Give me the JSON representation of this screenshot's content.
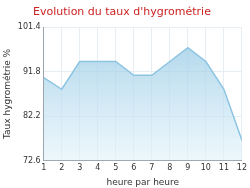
{
  "chart_data": {
    "type": "area",
    "title": "Evolution du taux d'hygrométrie",
    "x_label": "heure par heure",
    "y_label": "Taux hygrométrie %",
    "categories": [
      "1",
      "2",
      "3",
      "4",
      "5",
      "6",
      "7",
      "8",
      "9",
      "10",
      "11",
      "12"
    ],
    "values": [
      90.5,
      88,
      94,
      94,
      94,
      91,
      91,
      94,
      97,
      94,
      88,
      77
    ],
    "color": "#8cc4e2",
    "ylim": [
      72.6,
      101.4
    ],
    "yticks": [
      72.6,
      82.2,
      91.8,
      101.4
    ],
    "grid": true
  }
}
